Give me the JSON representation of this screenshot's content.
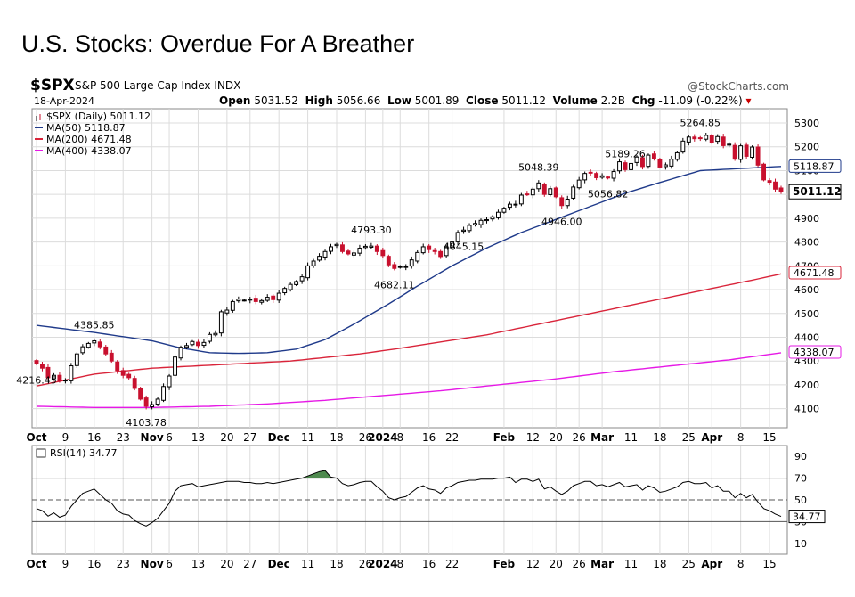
{
  "page_title": "U.S. Stocks: Overdue For A Breather",
  "header": {
    "symbol": "$SPX",
    "index_name": "S&P 500 Large Cap Index",
    "exchange": "INDX",
    "brand": "@StockCharts.com",
    "date": "18-Apr-2024",
    "open_label": "Open",
    "open": "5031.52",
    "high_label": "High",
    "high": "5056.66",
    "low_label": "Low",
    "low": "5001.89",
    "close_label": "Close",
    "close": "5011.12",
    "volume_label": "Volume",
    "volume": "2.2B",
    "chg_label": "Chg",
    "chg": "-11.09 (-0.22%)",
    "chg_arrow": "▾"
  },
  "colors": {
    "up": "#000000",
    "down": "#c8102e",
    "ma50": "#1f3a8a",
    "ma200": "#d9243a",
    "ma400": "#e619e6",
    "rsi": "#000000",
    "rsi_fill": "#4f8a4f",
    "grid": "#dcdcdc"
  },
  "chart_data": [
    {
      "type": "candlestick",
      "title": "$SPX (Daily) 5011.12",
      "ylim": [
        4020,
        5360
      ],
      "yticks": [
        4100,
        4200,
        4300,
        4400,
        4500,
        4600,
        4700,
        4800,
        4900,
        5000,
        5100,
        5200,
        5300
      ],
      "x_ticks": [
        {
          "i": 0,
          "label": "Oct"
        },
        {
          "i": 5,
          "label": "9"
        },
        {
          "i": 10,
          "label": "16"
        },
        {
          "i": 15,
          "label": "23"
        },
        {
          "i": 20,
          "label": "Nov"
        },
        {
          "i": 23,
          "label": "6"
        },
        {
          "i": 28,
          "label": "13"
        },
        {
          "i": 33,
          "label": "20"
        },
        {
          "i": 37,
          "label": "27"
        },
        {
          "i": 42,
          "label": "Dec"
        },
        {
          "i": 47,
          "label": "11"
        },
        {
          "i": 52,
          "label": "18"
        },
        {
          "i": 57,
          "label": "26"
        },
        {
          "i": 60,
          "label": "2024"
        },
        {
          "i": 63,
          "label": "8"
        },
        {
          "i": 68,
          "label": "16"
        },
        {
          "i": 72,
          "label": "22"
        },
        {
          "i": 81,
          "label": "Feb"
        },
        {
          "i": 86,
          "label": "12"
        },
        {
          "i": 90,
          "label": "20"
        },
        {
          "i": 94,
          "label": "26"
        },
        {
          "i": 98,
          "label": "Mar"
        },
        {
          "i": 103,
          "label": "11"
        },
        {
          "i": 108,
          "label": "18"
        },
        {
          "i": 113,
          "label": "25"
        },
        {
          "i": 117,
          "label": "Apr"
        },
        {
          "i": 122,
          "label": "8"
        },
        {
          "i": 127,
          "label": "15"
        }
      ],
      "closes": [
        4288,
        4270,
        4230,
        4240,
        4216,
        4220,
        4280,
        4330,
        4360,
        4374,
        4385,
        4360,
        4330,
        4300,
        4260,
        4240,
        4230,
        4185,
        4140,
        4110,
        4117,
        4140,
        4193,
        4237,
        4317,
        4358,
        4365,
        4382,
        4365,
        4378,
        4412,
        4416,
        4507,
        4514,
        4550,
        4560,
        4556,
        4560,
        4550,
        4554,
        4568,
        4558,
        4585,
        4605,
        4622,
        4634,
        4654,
        4700,
        4720,
        4740,
        4760,
        4780,
        4790,
        4760,
        4750,
        4754,
        4774,
        4782,
        4783,
        4760,
        4743,
        4704,
        4689,
        4697,
        4697,
        4725,
        4756,
        4780,
        4768,
        4760,
        4739,
        4780,
        4800,
        4840,
        4850,
        4870,
        4878,
        4891,
        4894,
        4906,
        4925,
        4942,
        4959,
        4959,
        4997,
        5000,
        5022,
        5048,
        5000,
        5024,
        4990,
        4953,
        4980,
        5031,
        5060,
        5088,
        5090,
        5070,
        5078,
        5069,
        5096,
        5137,
        5104,
        5130,
        5157,
        5117,
        5165,
        5150,
        5115,
        5124,
        5148,
        5175,
        5224,
        5241,
        5234,
        5235,
        5248,
        5218,
        5243,
        5205,
        5211,
        5148,
        5204,
        5160,
        5199,
        5123,
        5061,
        5051,
        5022,
        5011
      ],
      "series": [
        {
          "name": "MA(50) 5118.87",
          "label": "MA(50) 5118.87",
          "end_value": 5118.87,
          "end_label": "5118.87",
          "anchor_values": [
            4450,
            4420,
            4385,
            4355,
            4335,
            4332,
            4335,
            4350,
            4390,
            4455,
            4540,
            4615,
            4700,
            4775,
            4840,
            4895,
            4950,
            5005,
            5050,
            5100,
            5118.87
          ],
          "anchor_index": [
            0,
            10,
            20,
            25,
            30,
            35,
            40,
            45,
            50,
            55,
            61,
            66,
            72,
            78,
            84,
            90,
            96,
            102,
            108,
            115,
            130
          ]
        },
        {
          "name": "MA(200) 4671.48",
          "label": "MA(200) 4671.48",
          "end_value": 4671.48,
          "end_label": "4671.48",
          "anchor_values": [
            4195,
            4245,
            4270,
            4280,
            4290,
            4300,
            4315,
            4330,
            4350,
            4380,
            4410,
            4450,
            4490,
            4530,
            4570,
            4610,
            4640,
            4671.48
          ],
          "anchor_index": [
            0,
            10,
            20,
            28,
            36,
            44,
            50,
            56,
            62,
            70,
            78,
            86,
            94,
            102,
            110,
            118,
            124,
            130
          ]
        },
        {
          "name": "MA(400) 4338.07",
          "label": "MA(400) 4338.07",
          "end_value": 4338.07,
          "end_label": "4338.07",
          "anchor_values": [
            4110,
            4105,
            4105,
            4110,
            4120,
            4135,
            4155,
            4175,
            4200,
            4225,
            4255,
            4280,
            4305,
            4338.07
          ],
          "anchor_index": [
            0,
            10,
            20,
            30,
            40,
            50,
            60,
            70,
            80,
            90,
            100,
            110,
            120,
            130
          ]
        }
      ],
      "last_price_label": "5011.12",
      "annotations": [
        {
          "i": 10,
          "value": "4385.85",
          "pos": "above"
        },
        {
          "i": 0,
          "value": "4216.45",
          "pos": "below"
        },
        {
          "i": 19,
          "value": "4103.78",
          "pos": "below"
        },
        {
          "i": 58,
          "value": "4793.30",
          "pos": "above"
        },
        {
          "i": 62,
          "value": "4682.11",
          "pos": "below"
        },
        {
          "i": 74,
          "value": "4845.15",
          "pos": "below"
        },
        {
          "i": 87,
          "value": "5048.39",
          "pos": "above"
        },
        {
          "i": 91,
          "value": "4946.00",
          "pos": "below"
        },
        {
          "i": 102,
          "value": "5189.26",
          "pos": "above"
        },
        {
          "i": 99,
          "value": "5056.82",
          "pos": "below"
        },
        {
          "i": 115,
          "value": "5264.85",
          "pos": "above"
        }
      ]
    },
    {
      "type": "line",
      "title": "RSI(14) 34.77",
      "ylim": [
        0,
        100
      ],
      "yticks": [
        10,
        30,
        50,
        70,
        90
      ],
      "reference_lines": [
        70,
        50,
        30
      ],
      "values": [
        42,
        40,
        35,
        38,
        34,
        36,
        44,
        50,
        56,
        58,
        60,
        55,
        50,
        47,
        40,
        37,
        36,
        31,
        28,
        26,
        29,
        33,
        40,
        47,
        58,
        63,
        64,
        65,
        62,
        63,
        64,
        65,
        66,
        67,
        67,
        67,
        66,
        66,
        65,
        65,
        66,
        65,
        66,
        67,
        68,
        69,
        70,
        72,
        74,
        76,
        77,
        71,
        70,
        65,
        63,
        64,
        66,
        67,
        67,
        62,
        58,
        52,
        50,
        52,
        53,
        57,
        61,
        63,
        60,
        59,
        56,
        61,
        63,
        66,
        67,
        68,
        68,
        69,
        69,
        69,
        70,
        70,
        71,
        66,
        69,
        69,
        67,
        69,
        60,
        62,
        58,
        55,
        58,
        63,
        65,
        67,
        67,
        63,
        64,
        62,
        64,
        66,
        62,
        63,
        64,
        59,
        63,
        61,
        57,
        58,
        60,
        62,
        66,
        67,
        65,
        65,
        66,
        61,
        63,
        58,
        58,
        52,
        56,
        52,
        55,
        48,
        42,
        40,
        37,
        34.77
      ],
      "end_label": "34.77"
    }
  ]
}
